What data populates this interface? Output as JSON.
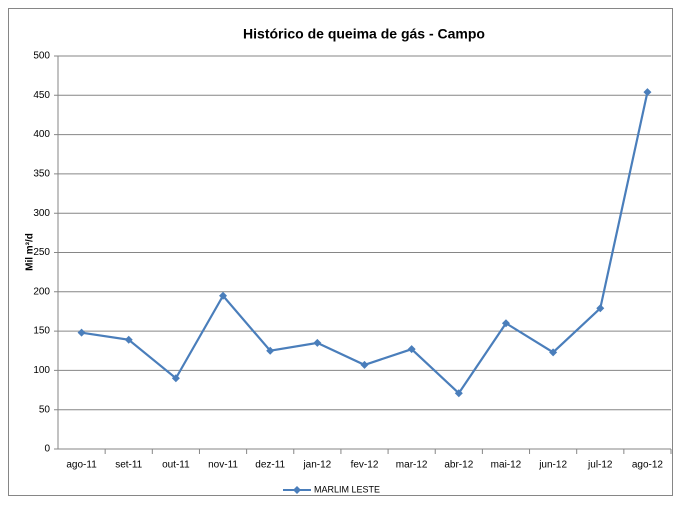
{
  "chart_data": {
    "type": "line",
    "title": "Histórico de queima de gás - Campo",
    "y_label": "Mil m³/d",
    "categories": [
      "ago-11",
      "set-11",
      "out-11",
      "nov-11",
      "dez-11",
      "jan-12",
      "fev-12",
      "mar-12",
      "abr-12",
      "mai-12",
      "jun-12",
      "jul-12",
      "ago-12"
    ],
    "series": [
      {
        "name": "MARLIM LESTE",
        "color": "#4a7ebb",
        "values": [
          148,
          139,
          90,
          195,
          125,
          135,
          107,
          127,
          71,
          160,
          123,
          179,
          454
        ]
      }
    ],
    "ylim": [
      0,
      500
    ],
    "yticks": [
      0,
      50,
      100,
      150,
      200,
      250,
      300,
      350,
      400,
      450,
      500
    ],
    "grid": true,
    "legend": "bottom"
  }
}
